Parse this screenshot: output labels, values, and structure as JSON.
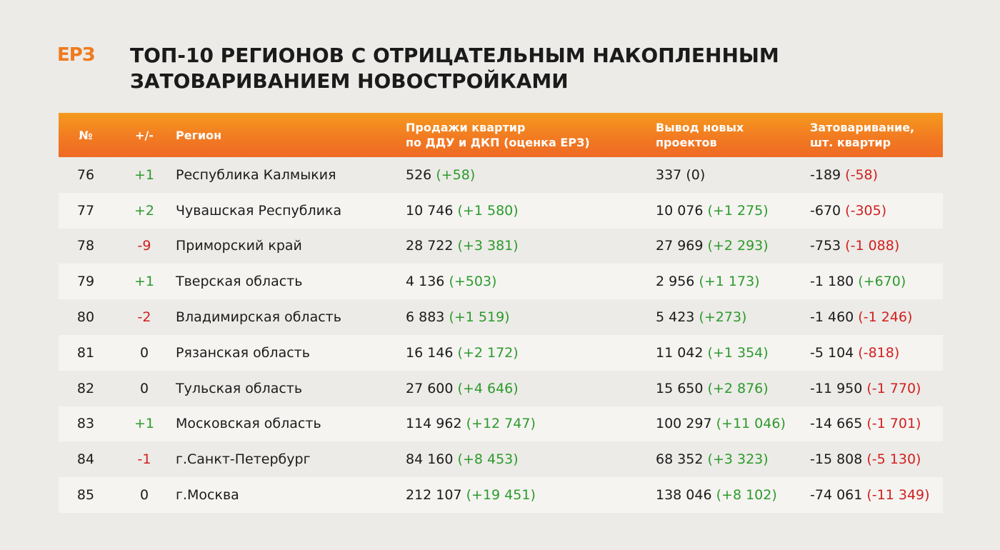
{
  "logo": "ЕРЗ",
  "title": {
    "line1": "ТОП-10 РЕГИОНОВ С ОТРИЦАТЕЛЬНЫМ НАКОПЛЕННЫМ",
    "line2": "ЗАТОВАРИВАНИЕМ НОВОСТРОЙКАМИ"
  },
  "colors": {
    "accent": "#f07a1e",
    "positive": "#2c9a2c",
    "negative": "#d21f1f"
  },
  "table": {
    "headers": {
      "num": "№",
      "change": "+/-",
      "region": "Регион",
      "sales": [
        "Продажи квартир",
        "по ДДУ и ДКП (оценка ЕРЗ)"
      ],
      "new_projects": [
        "Вывод новых",
        "проектов"
      ],
      "overstock": [
        "Затоваривание,",
        "шт. квартир"
      ]
    },
    "rows": [
      {
        "num": "76",
        "change": "+1",
        "change_sign": "pos",
        "region": "Республика Калмыкия",
        "sales": "526",
        "sales_delta": "(+58)",
        "sales_sign": "pos",
        "new": "337",
        "new_delta": "(0)",
        "new_sign": "zero",
        "over": "-189",
        "over_delta": "(-58)",
        "over_sign": "neg"
      },
      {
        "num": "77",
        "change": "+2",
        "change_sign": "pos",
        "region": "Чувашская Республика",
        "sales": "10 746",
        "sales_delta": "(+1 580)",
        "sales_sign": "pos",
        "new": "10 076",
        "new_delta": "(+1 275)",
        "new_sign": "pos",
        "over": "-670",
        "over_delta": "(-305)",
        "over_sign": "neg"
      },
      {
        "num": "78",
        "change": "-9",
        "change_sign": "neg",
        "region": "Приморский край",
        "sales": "28 722",
        "sales_delta": "(+3 381)",
        "sales_sign": "pos",
        "new": "27 969",
        "new_delta": "(+2 293)",
        "new_sign": "pos",
        "over": "-753",
        "over_delta": "(-1 088)",
        "over_sign": "neg"
      },
      {
        "num": "79",
        "change": "+1",
        "change_sign": "pos",
        "region": "Тверская область",
        "sales": "4 136",
        "sales_delta": "(+503)",
        "sales_sign": "pos",
        "new": "2 956",
        "new_delta": "(+1 173)",
        "new_sign": "pos",
        "over": "-1 180",
        "over_delta": "(+670)",
        "over_sign": "pos"
      },
      {
        "num": "80",
        "change": "-2",
        "change_sign": "neg",
        "region": "Владимирская область",
        "sales": "6 883",
        "sales_delta": "(+1 519)",
        "sales_sign": "pos",
        "new": "5 423",
        "new_delta": "(+273)",
        "new_sign": "pos",
        "over": "-1 460",
        "over_delta": "(-1 246)",
        "over_sign": "neg"
      },
      {
        "num": "81",
        "change": "0",
        "change_sign": "zero",
        "region": "Рязанская область",
        "sales": "16 146",
        "sales_delta": "(+2 172)",
        "sales_sign": "pos",
        "new": "11 042",
        "new_delta": "(+1 354)",
        "new_sign": "pos",
        "over": "-5 104",
        "over_delta": "(-818)",
        "over_sign": "neg"
      },
      {
        "num": "82",
        "change": "0",
        "change_sign": "zero",
        "region": "Тульская область",
        "sales": "27 600",
        "sales_delta": "(+4 646)",
        "sales_sign": "pos",
        "new": "15 650",
        "new_delta": "(+2 876)",
        "new_sign": "pos",
        "over": "-11 950",
        "over_delta": "(-1 770)",
        "over_sign": "neg"
      },
      {
        "num": "83",
        "change": "+1",
        "change_sign": "pos",
        "region": "Московская область",
        "sales": "114 962",
        "sales_delta": "(+12 747)",
        "sales_sign": "pos",
        "new": "100 297",
        "new_delta": "(+11 046)",
        "new_sign": "pos",
        "over": "-14 665",
        "over_delta": "(-1 701)",
        "over_sign": "neg"
      },
      {
        "num": "84",
        "change": "-1",
        "change_sign": "neg",
        "region": "г.Санкт-Петербург",
        "sales": "84 160",
        "sales_delta": "(+8 453)",
        "sales_sign": "pos",
        "new": "68 352",
        "new_delta": "(+3 323)",
        "new_sign": "pos",
        "over": "-15 808",
        "over_delta": "(-5 130)",
        "over_sign": "neg"
      },
      {
        "num": "85",
        "change": "0",
        "change_sign": "zero",
        "region": "г.Москва",
        "sales": "212 107",
        "sales_delta": "(+19 451)",
        "sales_sign": "pos",
        "new": "138 046",
        "new_delta": "(+8 102)",
        "new_sign": "pos",
        "over": "-74 061",
        "over_delta": "(-11 349)",
        "over_sign": "neg"
      }
    ]
  }
}
